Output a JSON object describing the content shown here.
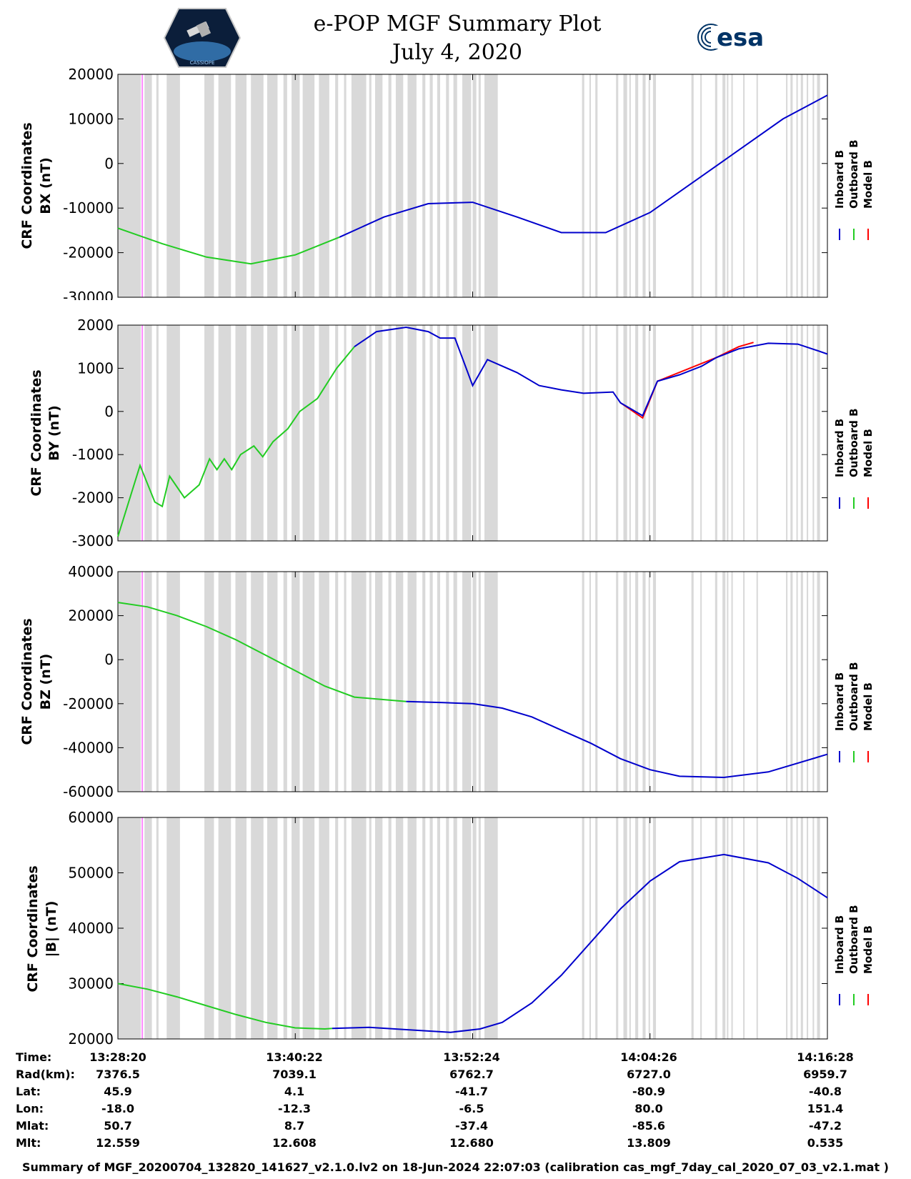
{
  "header": {
    "title_line1": "e-POP MGF Summary Plot",
    "title_line2": "July 4, 2020",
    "logo_left_text": "CASSIOPE",
    "logo_right_text": "esa"
  },
  "colors": {
    "inboard": "#0000cc",
    "outboard": "#22cc22",
    "model": "#ff0000",
    "gap_band": "#d9d9d9",
    "marker": "#ff88ff"
  },
  "legend": {
    "inboard": "Inboard B",
    "outboard": "Outboard B",
    "model": "Model B"
  },
  "chart_data": [
    {
      "type": "line",
      "id": "bx",
      "ylabel_line1": "CRF Coordinates",
      "ylabel_line2": "BX (nT)",
      "ylim": [
        -30000,
        20000
      ],
      "yticks": [
        -30000,
        -20000,
        -10000,
        0,
        10000,
        20000
      ],
      "ytick_labels": [
        "-30000",
        "-20000",
        "-10000",
        "0",
        "10000",
        "20000"
      ],
      "x_minutes": [
        0,
        4,
        8,
        12,
        16,
        20,
        24,
        28,
        32,
        36,
        40,
        44,
        48
      ],
      "outboard": {
        "x_end": 15.5,
        "values": [
          -14500,
          -18000,
          -21000,
          -22500,
          -20500,
          -16500,
          -12000
        ]
      },
      "inboard": {
        "x_start": 15.5,
        "values": [
          -12000,
          -9000,
          -8700,
          -12000,
          -15500,
          -15500,
          -11000,
          -4000,
          3000,
          10000,
          15300
        ]
      },
      "model": {
        "values": [
          -14500,
          -18000,
          -21000,
          -22500,
          -20500,
          -16500,
          -12000,
          -9000,
          -8700,
          -12000,
          -15500,
          -15500,
          -11000,
          -4000,
          3000,
          10000,
          15300
        ]
      }
    },
    {
      "type": "line",
      "id": "by",
      "ylabel_line1": "CRF Coordinates",
      "ylabel_line2": "BY (nT)",
      "ylim": [
        -3000,
        2000
      ],
      "yticks": [
        -3000,
        -2000,
        -1000,
        0,
        1000,
        2000
      ],
      "ytick_labels": [
        "-3000",
        "-2000",
        "-1000",
        "0",
        "1000",
        "2000"
      ],
      "outboard_points": [
        [
          0,
          -2900
        ],
        [
          1.5,
          -1250
        ],
        [
          2.5,
          -2100
        ],
        [
          3.0,
          -2200
        ],
        [
          3.5,
          -1500
        ],
        [
          4.5,
          -2000
        ],
        [
          5.5,
          -1700
        ],
        [
          6.2,
          -1100
        ],
        [
          6.7,
          -1350
        ],
        [
          7.2,
          -1100
        ],
        [
          7.7,
          -1350
        ],
        [
          8.3,
          -1000
        ],
        [
          9.2,
          -800
        ],
        [
          9.8,
          -1050
        ],
        [
          10.5,
          -700
        ],
        [
          11.5,
          -400
        ],
        [
          12.3,
          0
        ],
        [
          13.5,
          300
        ],
        [
          14.8,
          1000
        ],
        [
          16.0,
          1500
        ]
      ],
      "inboard_points": [
        [
          16.0,
          1500
        ],
        [
          17.5,
          1850
        ],
        [
          19.5,
          1950
        ],
        [
          21.0,
          1850
        ],
        [
          21.8,
          1700
        ],
        [
          22.8,
          1700
        ],
        [
          24.0,
          600
        ],
        [
          25.0,
          1200
        ],
        [
          27.0,
          900
        ],
        [
          28.5,
          600
        ],
        [
          30.0,
          500
        ],
        [
          31.5,
          420
        ],
        [
          33.5,
          450
        ],
        [
          34.0,
          200
        ],
        [
          35.5,
          -100
        ],
        [
          36.5,
          700
        ],
        [
          38.0,
          850
        ],
        [
          39.5,
          1050
        ],
        [
          40.5,
          1250
        ],
        [
          42.0,
          1450
        ],
        [
          44.0,
          1580
        ],
        [
          46.0,
          1560
        ],
        [
          47.4,
          1400
        ],
        [
          48.0,
          1330
        ]
      ],
      "model_points": [
        [
          34.0,
          200
        ],
        [
          35.5,
          -150
        ],
        [
          36.5,
          700
        ],
        [
          40.5,
          1250
        ],
        [
          42.0,
          1500
        ],
        [
          43.0,
          1600
        ]
      ]
    },
    {
      "type": "line",
      "id": "bz",
      "ylabel_line1": "CRF Coordinates",
      "ylabel_line2": "BZ (nT)",
      "ylim": [
        -60000,
        40000
      ],
      "yticks": [
        -60000,
        -40000,
        -20000,
        0,
        20000,
        40000
      ],
      "ytick_labels": [
        "-60000",
        "-40000",
        "-20000",
        "0",
        "20000",
        "40000"
      ],
      "outboard_points": [
        [
          0,
          26000
        ],
        [
          2,
          24000
        ],
        [
          4,
          20000
        ],
        [
          6,
          15000
        ],
        [
          8,
          9000
        ],
        [
          10,
          2000
        ],
        [
          12,
          -5000
        ],
        [
          14,
          -12000
        ],
        [
          16,
          -17000
        ],
        [
          19.5,
          -19000
        ]
      ],
      "inboard_points": [
        [
          19.5,
          -19000
        ],
        [
          22,
          -19500
        ],
        [
          24,
          -20000
        ],
        [
          26,
          -22000
        ],
        [
          28,
          -26000
        ],
        [
          30,
          -32000
        ],
        [
          32,
          -38000
        ],
        [
          34,
          -45000
        ],
        [
          36,
          -50000
        ],
        [
          38,
          -53000
        ],
        [
          41,
          -53500
        ],
        [
          44,
          -51000
        ],
        [
          48,
          -43000
        ]
      ]
    },
    {
      "type": "line",
      "id": "bmag",
      "ylabel_line1": "CRF Coordinates",
      "ylabel_line2": "|B| (nT)",
      "ylim": [
        20000,
        60000
      ],
      "yticks": [
        20000,
        30000,
        40000,
        50000,
        60000
      ],
      "ytick_labels": [
        "20000",
        "30000",
        "40000",
        "50000",
        "60000"
      ],
      "outboard_points": [
        [
          0,
          30000
        ],
        [
          2,
          29000
        ],
        [
          4,
          27600
        ],
        [
          6,
          26000
        ],
        [
          8,
          24400
        ],
        [
          10,
          23000
        ],
        [
          12,
          22000
        ],
        [
          14,
          21800
        ],
        [
          14.5,
          21900
        ]
      ],
      "inboard_points": [
        [
          14.5,
          21900
        ],
        [
          17,
          22100
        ],
        [
          20,
          21600
        ],
        [
          22.5,
          21200
        ],
        [
          24.5,
          21800
        ],
        [
          26,
          23000
        ],
        [
          28,
          26500
        ],
        [
          30,
          31500
        ],
        [
          32,
          37500
        ],
        [
          34,
          43500
        ],
        [
          36,
          48500
        ],
        [
          38,
          52000
        ],
        [
          41,
          53300
        ],
        [
          44,
          51800
        ],
        [
          46,
          49000
        ],
        [
          48,
          45500
        ]
      ]
    }
  ],
  "gap_bands_minutes": [
    [
      0,
      1.55
    ],
    [
      1.8,
      2.3
    ],
    [
      2.6,
      2.75
    ],
    [
      3.3,
      4.2
    ],
    [
      5.85,
      6.5
    ],
    [
      6.8,
      7.65
    ],
    [
      7.95,
      8.7
    ],
    [
      9.0,
      9.85
    ],
    [
      10.1,
      10.8
    ],
    [
      11.2,
      11.45
    ],
    [
      11.75,
      12.3
    ],
    [
      12.5,
      13.3
    ],
    [
      13.6,
      14.3
    ],
    [
      14.7,
      14.9
    ],
    [
      15.3,
      15.45
    ],
    [
      15.8,
      16.8
    ],
    [
      17.0,
      17.15
    ],
    [
      17.4,
      17.9
    ],
    [
      18.3,
      18.5
    ],
    [
      18.8,
      19.3
    ],
    [
      19.6,
      20.2
    ],
    [
      20.6,
      20.8
    ],
    [
      21.1,
      21.3
    ],
    [
      21.6,
      21.8
    ],
    [
      22.2,
      22.4
    ],
    [
      22.7,
      22.95
    ],
    [
      23.3,
      23.9
    ],
    [
      24.0,
      24.25
    ],
    [
      24.4,
      24.55
    ],
    [
      24.8,
      25.7
    ],
    [
      31.4,
      31.55
    ],
    [
      31.9,
      32.0
    ],
    [
      32.3,
      32.45
    ],
    [
      33.7,
      33.85
    ],
    [
      34.2,
      34.45
    ],
    [
      34.6,
      34.7
    ],
    [
      35.0,
      35.2
    ],
    [
      35.5,
      35.7
    ],
    [
      35.9,
      36.0
    ],
    [
      36.2,
      36.4
    ],
    [
      38.8,
      38.95
    ],
    [
      39.4,
      39.5
    ],
    [
      40.4,
      40.55
    ],
    [
      40.9,
      41.1
    ],
    [
      41.2,
      41.3
    ],
    [
      41.5,
      41.6
    ],
    [
      42.3,
      42.4
    ],
    [
      43.2,
      43.3
    ],
    [
      45.2,
      45.3
    ],
    [
      45.5,
      45.65
    ],
    [
      45.9,
      46.0
    ],
    [
      46.2,
      46.35
    ],
    [
      46.6,
      46.7
    ],
    [
      47.0,
      47.1
    ],
    [
      47.3,
      47.5
    ]
  ],
  "marker_minute": 1.65,
  "x_range_minutes": [
    0,
    48
  ],
  "info": {
    "row_labels": [
      "Time:",
      "Rad(km):",
      "Lat:",
      "Lon:",
      "Mlat:",
      "Mlt:"
    ],
    "columns": [
      {
        "values": [
          "13:28:20",
          "7376.5",
          "45.9",
          "-18.0",
          "50.7",
          "12.559"
        ]
      },
      {
        "values": [
          "13:40:22",
          "7039.1",
          "4.1",
          "-12.3",
          "8.7",
          "12.608"
        ]
      },
      {
        "values": [
          "13:52:24",
          "6762.7",
          "-41.7",
          "-6.5",
          "-37.4",
          "12.680"
        ]
      },
      {
        "values": [
          "14:04:26",
          "6727.0",
          "-80.9",
          "80.0",
          "-85.6",
          "13.809"
        ]
      },
      {
        "values": [
          "14:16:28",
          "6959.7",
          "-40.8",
          "151.4",
          "-47.2",
          "0.535"
        ]
      }
    ]
  },
  "footer": "Summary of MGF_20200704_132820_141627_v2.1.0.lv2 on 18-Jun-2024 22:07:03 (calibration cas_mgf_7day_cal_2020_07_03_v2.1.mat )"
}
